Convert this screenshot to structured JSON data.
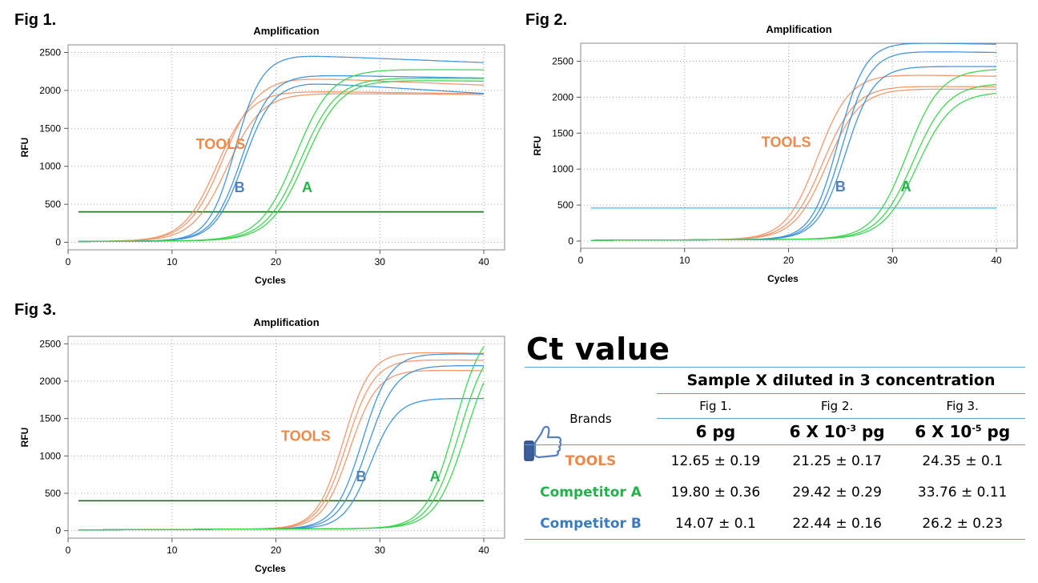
{
  "figures": [
    {
      "label": "Fig 1.",
      "chart_data": {
        "type": "line",
        "title": "Amplification",
        "xlabel": "Cycles",
        "ylabel": "RFU",
        "xlim": [
          0,
          42
        ],
        "ylim": [
          -100,
          2600
        ],
        "xticks": [
          0,
          10,
          20,
          30,
          40
        ],
        "yticks": [
          0,
          500,
          1000,
          1500,
          2000,
          2500
        ],
        "grid": true,
        "threshold": 400,
        "threshold_color": "#1a6e1a",
        "annotations": [
          {
            "text": "TOOLS",
            "x": 12.3,
            "y": 1230,
            "color": "#ed8a4b"
          },
          {
            "text": "B",
            "x": 16,
            "y": 660,
            "color": "#4f81bd"
          },
          {
            "text": "A",
            "x": 22.5,
            "y": 660,
            "color": "#22b24c"
          }
        ],
        "series": [
          {
            "group": "TOOLS",
            "color": "#f0956a",
            "curves": [
              {
                "mid": 14.3,
                "k": 0.62,
                "plateau": 1970,
                "tail": -2.5
              },
              {
                "mid": 14.9,
                "k": 0.6,
                "plateau": 2150,
                "tail": -6
              },
              {
                "mid": 15.3,
                "k": 0.6,
                "plateau": 1940,
                "tail": -1.5
              }
            ]
          },
          {
            "group": "B",
            "color": "#3d8fd9",
            "curves": [
              {
                "mid": 16.1,
                "k": 0.78,
                "plateau": 2440,
                "tail": -6
              },
              {
                "mid": 16.7,
                "k": 0.72,
                "plateau": 2180,
                "tail": -3
              },
              {
                "mid": 16.9,
                "k": 0.72,
                "plateau": 2080,
                "tail": -9
              }
            ]
          },
          {
            "group": "A",
            "color": "#39d34e",
            "curves": [
              {
                "mid": 21.9,
                "k": 0.58,
                "plateau": 2250,
                "tail": -1
              },
              {
                "mid": 22.4,
                "k": 0.58,
                "plateau": 2140,
                "tail": -1.5
              },
              {
                "mid": 22.8,
                "k": 0.58,
                "plateau": 2110,
                "tail": -2
              }
            ]
          }
        ]
      }
    },
    {
      "label": "Fig 2.",
      "chart_data": {
        "type": "line",
        "title": "Amplification",
        "xlabel": "Cycles",
        "ylabel": "RFU",
        "xlim": [
          0,
          42
        ],
        "ylim": [
          -100,
          2750
        ],
        "xticks": [
          0,
          10,
          20,
          30,
          40
        ],
        "yticks": [
          0,
          500,
          1000,
          1500,
          2000,
          2500
        ],
        "grid": true,
        "threshold": 460,
        "threshold_color": "#4fd7e6",
        "annotations": [
          {
            "text": "TOOLS",
            "x": 17.4,
            "y": 1310,
            "color": "#ed8a4b"
          },
          {
            "text": "B",
            "x": 24.5,
            "y": 690,
            "color": "#4f81bd"
          },
          {
            "text": "A",
            "x": 30.8,
            "y": 690,
            "color": "#22b24c"
          }
        ],
        "series": [
          {
            "group": "TOOLS",
            "color": "#f0956a",
            "curves": [
              {
                "mid": 22.8,
                "k": 0.65,
                "plateau": 2290,
                "tail": -3
              },
              {
                "mid": 23.3,
                "k": 0.63,
                "plateau": 2130,
                "tail": -2
              },
              {
                "mid": 23.7,
                "k": 0.63,
                "plateau": 2090,
                "tail": -1.5
              }
            ]
          },
          {
            "group": "B",
            "color": "#3d8fd9",
            "curves": [
              {
                "mid": 24.8,
                "k": 0.78,
                "plateau": 2730,
                "tail": -3
              },
              {
                "mid": 25.2,
                "k": 0.76,
                "plateau": 2610,
                "tail": -2.5
              },
              {
                "mid": 25.5,
                "k": 0.74,
                "plateau": 2400,
                "tail": -1
              }
            ]
          },
          {
            "group": "A",
            "color": "#39d34e",
            "curves": [
              {
                "mid": 31.4,
                "k": 0.62,
                "plateau": 2360,
                "tail": 0
              },
              {
                "mid": 32.0,
                "k": 0.6,
                "plateau": 2160,
                "tail": 0
              },
              {
                "mid": 32.4,
                "k": 0.6,
                "plateau": 2040,
                "tail": 0
              }
            ]
          }
        ]
      }
    },
    {
      "label": "Fig 3.",
      "chart_data": {
        "type": "line",
        "title": "Amplification",
        "xlabel": "Cycles",
        "ylabel": "RFU",
        "xlim": [
          0,
          42
        ],
        "ylim": [
          -100,
          2600
        ],
        "xticks": [
          0,
          10,
          20,
          30,
          40
        ],
        "yticks": [
          0,
          500,
          1000,
          1500,
          2000,
          2500
        ],
        "grid": true,
        "threshold": 400,
        "threshold_color": "#1a6e1a",
        "annotations": [
          {
            "text": "TOOLS",
            "x": 20.5,
            "y": 1200,
            "color": "#ed8a4b"
          },
          {
            "text": "B",
            "x": 27.7,
            "y": 660,
            "color": "#4f81bd"
          },
          {
            "text": "A",
            "x": 34.8,
            "y": 660,
            "color": "#22b24c"
          }
        ],
        "series": [
          {
            "group": "TOOLS",
            "color": "#f0956a",
            "curves": [
              {
                "mid": 26.5,
                "k": 0.78,
                "plateau": 2360,
                "tail": -3
              },
              {
                "mid": 26.8,
                "k": 0.76,
                "plateau": 2260,
                "tail": -2
              },
              {
                "mid": 27.1,
                "k": 0.76,
                "plateau": 2120,
                "tail": -2
              }
            ]
          },
          {
            "group": "B",
            "color": "#3d8fd9",
            "curves": [
              {
                "mid": 28.3,
                "k": 0.76,
                "plateau": 2340,
                "tail": -2
              },
              {
                "mid": 28.8,
                "k": 0.74,
                "plateau": 2180,
                "tail": -1
              },
              {
                "mid": 29.1,
                "k": 0.78,
                "plateau": 1740,
                "tail": -1
              }
            ]
          },
          {
            "group": "A",
            "color": "#39d34e",
            "curves": [
              {
                "mid": 37.2,
                "k": 0.72,
                "plateau": 2750,
                "tail": 0
              },
              {
                "mid": 37.7,
                "k": 0.7,
                "plateau": 2600,
                "tail": 0
              },
              {
                "mid": 38.3,
                "k": 0.68,
                "plateau": 2560,
                "tail": 0
              }
            ]
          }
        ]
      }
    }
  ],
  "ct_table": {
    "title": "Ct value",
    "header": "Sample X diluted in 3 concentration",
    "brands_label": "Brands",
    "fig_labels": [
      "Fig 1.",
      "Fig 2.",
      "Fig 3."
    ],
    "concentrations": [
      {
        "base": "6 pg",
        "exp": ""
      },
      {
        "base": "6 Χ 10",
        "exp": "-3",
        "unit": " pg"
      },
      {
        "base": "6 Χ 10",
        "exp": "-5",
        "unit": " pg"
      }
    ],
    "rows": [
      {
        "brand": "TOOLS",
        "color": "#ed8a4b",
        "values": [
          "12.65 ± 0.19",
          "21.25 ± 0.17",
          "24.35 ± 0.1"
        ]
      },
      {
        "brand": "Competitor A",
        "color": "#22b24c",
        "values": [
          "19.80 ± 0.36",
          "29.42 ± 0.29",
          "33.76 ± 0.11"
        ]
      },
      {
        "brand": "Competitor B",
        "color": "#3a7bbf",
        "values": [
          "14.07 ± 0.1",
          "22.44 ± 0.16",
          "26.2 ± 0.23"
        ]
      }
    ],
    "thumb_color": "#5a7fc0"
  }
}
